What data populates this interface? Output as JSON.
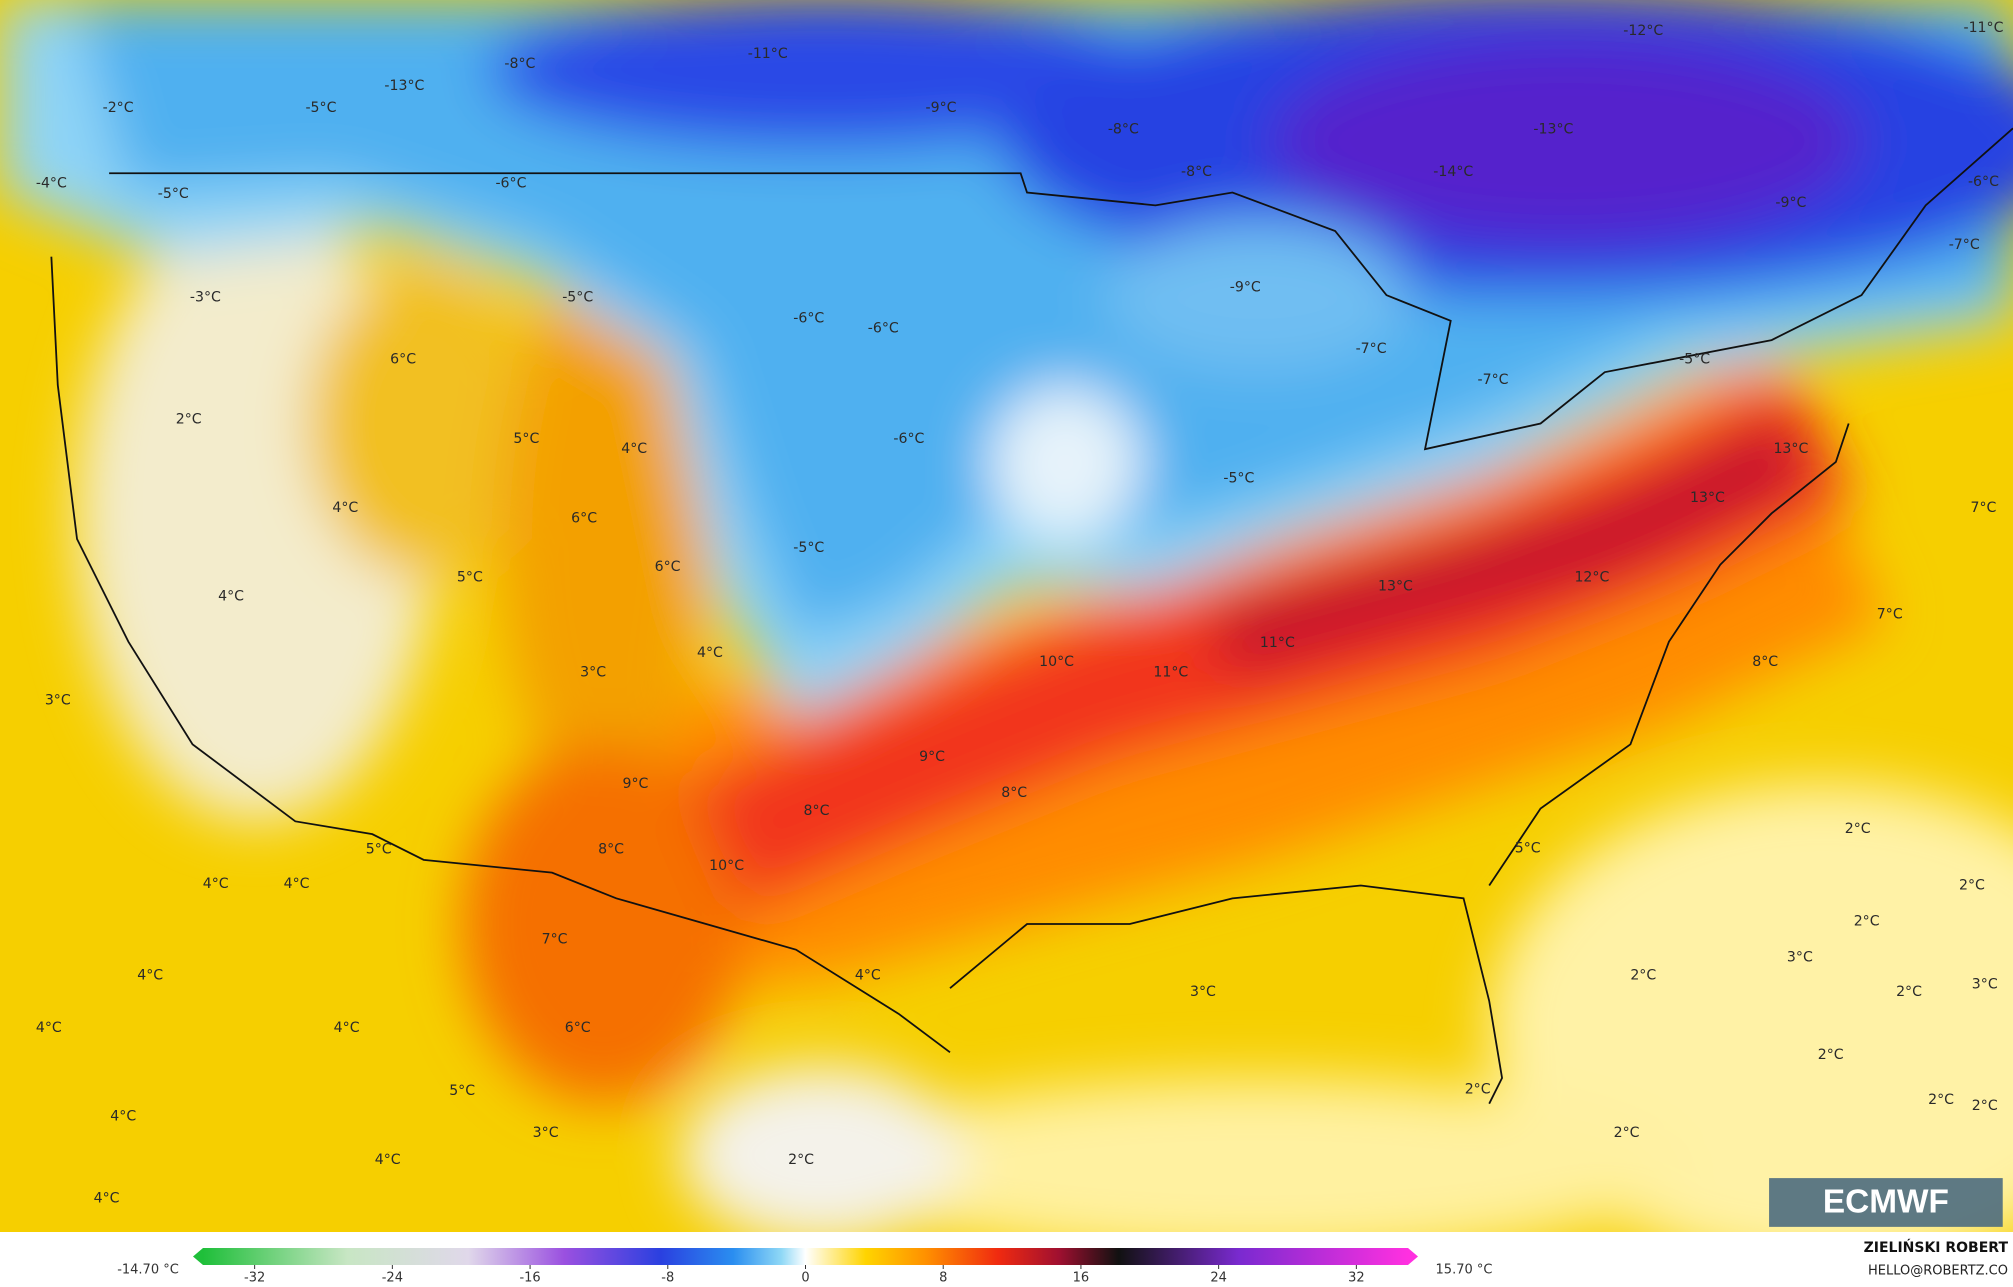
{
  "map": {
    "labels": [
      "-13°C",
      "-8°C",
      "-11°C",
      "-9°C",
      "-5°C",
      "-2°C",
      "-12°C",
      "-11°C",
      "-13°C",
      "-8°C",
      "-8°C",
      "-14°C",
      "-9°C",
      "-6°C",
      "-7°C",
      "-6°C",
      "-5°C",
      "-4°C",
      "-3°C",
      "-5°C",
      "-6°C",
      "-6°C",
      "-9°C",
      "-7°C",
      "-7°C",
      "-5°C",
      "6°C",
      "2°C",
      "5°C",
      "4°C",
      "-6°C",
      "-5°C",
      "13°C",
      "13°C",
      "7°C",
      "4°C",
      "6°C",
      "6°C",
      "-5°C",
      "5°C",
      "4°C",
      "13°C",
      "12°C",
      "7°C",
      "11°C",
      "10°C",
      "11°C",
      "4°C",
      "3°C",
      "3°C",
      "8°C",
      "9°C",
      "9°C",
      "8°C",
      "8°C",
      "2°C",
      "5°C",
      "8°C",
      "10°C",
      "5°C",
      "4°C",
      "4°C",
      "2°C",
      "2°C",
      "3°C",
      "7°C",
      "4°C",
      "3°C",
      "2°C",
      "2°C",
      "3°C",
      "4°C",
      "4°C",
      "4°C",
      "6°C",
      "2°C",
      "2°C",
      "2°C",
      "5°C",
      "2°C",
      "4°C",
      "3°C",
      "2°C",
      "4°C",
      "2°C",
      "4°C"
    ]
  },
  "colorbar": {
    "lim": [
      -35,
      35
    ],
    "ticks": [
      -32,
      -24,
      -16,
      -8,
      0,
      8,
      16,
      24,
      32
    ],
    "min_label": "-14.70 °C",
    "max_label": "15.70 °C"
  },
  "credit": {
    "author": "ZIELIŃSKI ROBERT",
    "email": "HELLO@ROBERTZ.CO"
  },
  "logo": "ECMWF"
}
